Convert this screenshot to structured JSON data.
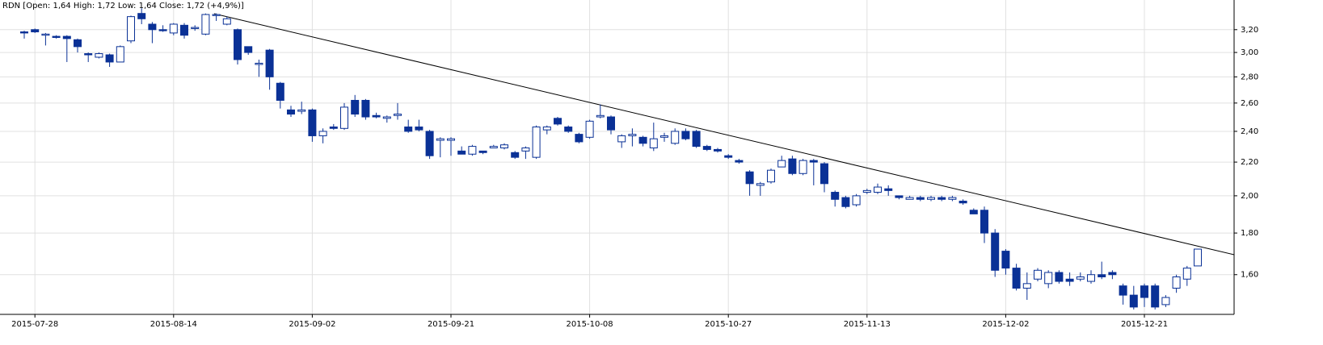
{
  "chart_data": {
    "type": "candlestick",
    "title": "RDN [Open: 1,64  High: 1,72  Low: 1,64  Close: 1,72 (+4,9%)]",
    "categories": [
      null,
      "2015-07-28",
      null,
      null,
      null,
      null,
      null,
      null,
      null,
      null,
      null,
      null,
      null,
      null,
      "2015-08-14",
      null,
      null,
      null,
      null,
      null,
      null,
      null,
      null,
      null,
      null,
      null,
      null,
      "2015-09-02",
      null,
      null,
      null,
      null,
      null,
      null,
      null,
      null,
      null,
      null,
      null,
      null,
      "2015-09-21",
      null,
      null,
      null,
      null,
      null,
      null,
      null,
      null,
      null,
      null,
      null,
      null,
      "2015-10-08",
      null,
      null,
      null,
      null,
      null,
      null,
      null,
      null,
      null,
      null,
      null,
      null,
      "2015-10-27",
      null,
      null,
      null,
      null,
      null,
      null,
      null,
      null,
      null,
      null,
      null,
      null,
      "2015-11-13",
      null,
      null,
      null,
      null,
      null,
      null,
      null,
      null,
      null,
      null,
      null,
      null,
      "2015-12-02",
      null,
      null,
      null,
      null,
      null,
      null,
      null,
      null,
      null,
      null,
      null,
      null,
      "2015-12-21",
      null,
      null,
      null,
      null,
      null
    ],
    "open": [
      3.18,
      3.2,
      3.15,
      3.14,
      3.14,
      3.11,
      2.99,
      2.96,
      2.98,
      2.92,
      3.1,
      3.35,
      3.25,
      3.2,
      3.17,
      3.24,
      3.21,
      3.16,
      3.33,
      3.25,
      3.2,
      3.05,
      2.9,
      3.02,
      2.75,
      2.55,
      2.54,
      2.55,
      2.37,
      2.43,
      2.42,
      2.62,
      2.62,
      2.51,
      2.49,
      2.51,
      2.43,
      2.43,
      2.4,
      2.34,
      2.34,
      2.27,
      2.25,
      2.27,
      2.29,
      2.29,
      2.26,
      2.27,
      2.23,
      2.41,
      2.49,
      2.43,
      2.38,
      2.36,
      2.5,
      2.5,
      2.33,
      2.37,
      2.36,
      2.29,
      2.36,
      2.32,
      2.4,
      2.4,
      2.3,
      2.28,
      2.24,
      2.21,
      2.14,
      2.06,
      2.08,
      2.17,
      2.22,
      2.13,
      2.21,
      2.19,
      2.02,
      1.99,
      1.95,
      2.02,
      2.02,
      2.04,
      2.0,
      1.98,
      1.99,
      1.98,
      1.99,
      1.98,
      1.97,
      1.92,
      1.92,
      1.8,
      1.71,
      1.63,
      1.54,
      1.58,
      1.56,
      1.61,
      1.58,
      1.58,
      1.57,
      1.6,
      1.61,
      1.55,
      1.51,
      1.55,
      1.55,
      1.47,
      1.54,
      1.58,
      1.64
    ],
    "high": [
      3.19,
      3.21,
      3.17,
      3.15,
      3.15,
      3.12,
      3.0,
      3.0,
      2.99,
      3.06,
      3.33,
      3.4,
      3.27,
      3.24,
      3.26,
      3.26,
      3.24,
      3.35,
      3.35,
      3.32,
      3.21,
      3.05,
      2.94,
      3.03,
      2.76,
      2.58,
      2.61,
      2.56,
      2.42,
      2.45,
      2.6,
      2.66,
      2.63,
      2.53,
      2.51,
      2.6,
      2.48,
      2.48,
      2.41,
      2.36,
      2.36,
      2.3,
      2.31,
      2.27,
      2.31,
      2.32,
      2.27,
      2.3,
      2.44,
      2.44,
      2.5,
      2.44,
      2.39,
      2.48,
      2.59,
      2.51,
      2.38,
      2.42,
      2.37,
      2.46,
      2.39,
      2.42,
      2.42,
      2.41,
      2.31,
      2.29,
      2.25,
      2.22,
      2.15,
      2.08,
      2.16,
      2.24,
      2.24,
      2.22,
      2.22,
      2.2,
      2.03,
      2.0,
      2.01,
      2.04,
      2.07,
      2.06,
      2.0,
      2.0,
      2.0,
      2.0,
      2.0,
      2.0,
      1.98,
      1.93,
      1.94,
      1.82,
      1.72,
      1.65,
      1.61,
      1.63,
      1.62,
      1.62,
      1.61,
      1.61,
      1.62,
      1.66,
      1.62,
      1.56,
      1.55,
      1.56,
      1.56,
      1.51,
      1.6,
      1.64,
      1.72
    ],
    "low": [
      3.12,
      3.17,
      3.06,
      3.12,
      2.92,
      3.0,
      2.92,
      2.95,
      2.88,
      2.92,
      3.08,
      3.25,
      3.08,
      3.18,
      3.15,
      3.12,
      3.19,
      3.15,
      3.28,
      3.24,
      2.9,
      2.98,
      2.8,
      2.7,
      2.56,
      2.5,
      2.52,
      2.33,
      2.32,
      2.41,
      2.41,
      2.5,
      2.48,
      2.49,
      2.46,
      2.48,
      2.39,
      2.4,
      2.22,
      2.23,
      2.24,
      2.25,
      2.24,
      2.25,
      2.29,
      2.28,
      2.22,
      2.22,
      2.22,
      2.38,
      2.44,
      2.39,
      2.32,
      2.35,
      2.49,
      2.38,
      2.29,
      2.3,
      2.3,
      2.27,
      2.33,
      2.31,
      2.34,
      2.29,
      2.27,
      2.26,
      2.22,
      2.19,
      2.0,
      2.0,
      2.07,
      2.17,
      2.12,
      2.12,
      2.06,
      2.02,
      1.94,
      1.93,
      1.94,
      2.01,
      2.01,
      2.0,
      1.98,
      1.98,
      1.97,
      1.97,
      1.97,
      1.97,
      1.95,
      1.9,
      1.75,
      1.59,
      1.6,
      1.53,
      1.49,
      1.57,
      1.54,
      1.56,
      1.55,
      1.57,
      1.56,
      1.58,
      1.58,
      1.47,
      1.45,
      1.46,
      1.45,
      1.46,
      1.52,
      1.55,
      1.64
    ],
    "close": [
      3.17,
      3.18,
      3.16,
      3.13,
      3.12,
      3.05,
      2.98,
      2.99,
      2.92,
      3.05,
      3.32,
      3.3,
      3.2,
      3.19,
      3.25,
      3.15,
      3.22,
      3.34,
      3.34,
      3.3,
      2.94,
      3.0,
      2.91,
      2.8,
      2.62,
      2.52,
      2.55,
      2.37,
      2.4,
      2.42,
      2.57,
      2.52,
      2.5,
      2.5,
      2.5,
      2.52,
      2.4,
      2.41,
      2.24,
      2.35,
      2.35,
      2.25,
      2.3,
      2.26,
      2.3,
      2.31,
      2.23,
      2.29,
      2.43,
      2.43,
      2.45,
      2.4,
      2.33,
      2.47,
      2.51,
      2.41,
      2.37,
      2.38,
      2.32,
      2.35,
      2.37,
      2.4,
      2.35,
      2.3,
      2.28,
      2.27,
      2.23,
      2.2,
      2.07,
      2.07,
      2.15,
      2.21,
      2.13,
      2.21,
      2.2,
      2.07,
      1.98,
      1.94,
      2.0,
      2.03,
      2.05,
      2.03,
      1.99,
      1.99,
      1.98,
      1.99,
      1.98,
      1.99,
      1.96,
      1.9,
      1.8,
      1.62,
      1.63,
      1.54,
      1.56,
      1.62,
      1.61,
      1.57,
      1.57,
      1.59,
      1.6,
      1.59,
      1.6,
      1.51,
      1.46,
      1.5,
      1.46,
      1.5,
      1.59,
      1.63,
      1.72
    ],
    "ylim": [
      1.43,
      3.48
    ],
    "yticks": [
      {
        "value": 1.6,
        "label": "1,60"
      },
      {
        "value": 1.8,
        "label": "1,80"
      },
      {
        "value": 2.0,
        "label": "2,00"
      },
      {
        "value": 2.2,
        "label": "2,20"
      },
      {
        "value": 2.4,
        "label": "2,40"
      },
      {
        "value": 2.6,
        "label": "2,60"
      },
      {
        "value": 2.8,
        "label": "2,80"
      },
      {
        "value": 3.0,
        "label": "3,00"
      },
      {
        "value": 3.2,
        "label": "3,20"
      }
    ],
    "log_scale": true,
    "grid": true,
    "down_color": "#0a3196",
    "up_color": "#ffffff",
    "wick_color": "#0a3196"
  }
}
